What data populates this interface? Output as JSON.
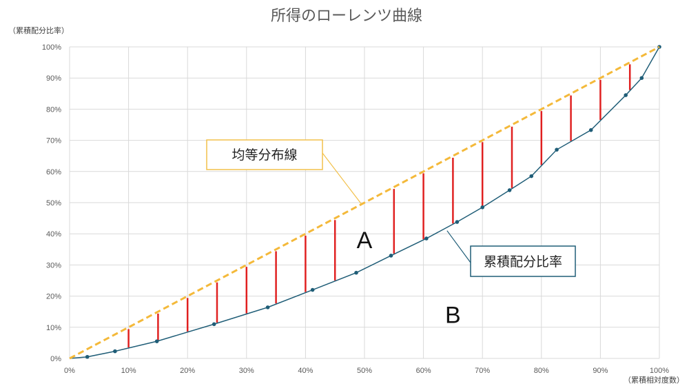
{
  "chart_data": {
    "type": "line",
    "title": "所得のローレンツ曲線",
    "ylabel": "（累積配分比率）",
    "xlabel": "（累積相対度数）",
    "xlim": [
      0,
      100
    ],
    "ylim": [
      0,
      100
    ],
    "x_ticks": [
      "0%",
      "10%",
      "20%",
      "30%",
      "40%",
      "50%",
      "60%",
      "70%",
      "80%",
      "90%",
      "100%"
    ],
    "y_ticks": [
      "0%",
      "10%",
      "20%",
      "30%",
      "40%",
      "50%",
      "60%",
      "70%",
      "80%",
      "90%",
      "100%"
    ],
    "grid": true,
    "series": [
      {
        "name": "均等分布線",
        "style": "dashed",
        "color": "#f4b93a",
        "x": [
          0,
          100
        ],
        "y": [
          0,
          100
        ]
      },
      {
        "name": "累積配分比率",
        "style": "solid-markers",
        "color": "#1f5d77",
        "x": [
          3,
          7.7,
          14.8,
          24.5,
          33.6,
          41.2,
          48.6,
          54.5,
          60.5,
          65.7,
          70,
          74.6,
          78.3,
          82.6,
          88.4,
          94.3,
          97,
          100
        ],
        "y": [
          0.5,
          2.3,
          5.5,
          11,
          16.4,
          22,
          27.5,
          33,
          38.5,
          43.8,
          48.5,
          54,
          58.5,
          67,
          73.3,
          84.5,
          90,
          100
        ]
      }
    ],
    "gap_lines": {
      "color": "#e02020",
      "x": [
        10,
        15,
        20,
        25,
        30,
        35,
        40,
        45,
        55,
        60,
        65,
        70,
        75,
        80,
        85,
        90,
        95
      ]
    },
    "annotations": [
      {
        "text": "均等分布線",
        "target": "均等分布線"
      },
      {
        "text": "累積配分比率",
        "target": "累積配分比率"
      }
    ],
    "regions": [
      {
        "text": "A",
        "x": 50,
        "y": 38
      },
      {
        "text": "B",
        "x": 65,
        "y": 14
      }
    ]
  },
  "colors": {
    "equality": "#f4b93a",
    "curve": "#1f5d77",
    "gap": "#e02020",
    "grid": "#d9d9d9",
    "callout_equality_border": "#f2c04a",
    "callout_curve_border": "#1f5d77"
  }
}
